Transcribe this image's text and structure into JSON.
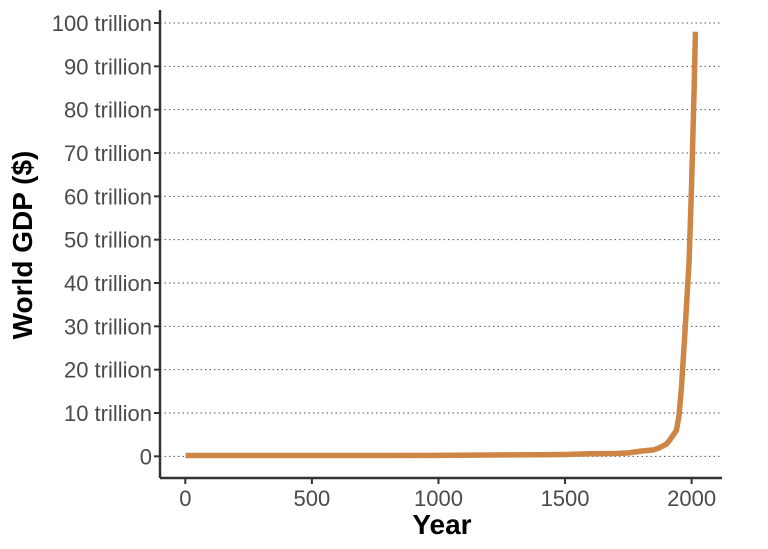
{
  "chart_data": {
    "type": "line",
    "title": "",
    "xlabel": "Year",
    "ylabel": "World GDP ($)",
    "xlim": [
      -100,
      2120
    ],
    "ylim": [
      -5,
      103
    ],
    "x_ticks": [
      0,
      500,
      1000,
      1500,
      2000
    ],
    "x_tick_labels": [
      "0",
      "500",
      "1000",
      "1500",
      "2000"
    ],
    "y_ticks": [
      0,
      10,
      20,
      30,
      40,
      50,
      60,
      70,
      80,
      90,
      100
    ],
    "y_tick_labels": [
      "0",
      "10 trillion",
      "20 trillion",
      "30 trillion",
      "40 trillion",
      "50 trillion",
      "60 trillion",
      "70 trillion",
      "80 trillion",
      "90 trillion",
      "100 trillion"
    ],
    "grid": "horizontal dotted",
    "line_color": "#CD8646",
    "series": [
      {
        "x": [
          1,
          500,
          1000,
          1200,
          1400,
          1500,
          1600,
          1700,
          1750,
          1800,
          1850,
          1870,
          1900,
          1913,
          1940,
          1950,
          1960,
          1973,
          1980,
          1990,
          2000,
          2010,
          2015
        ],
        "values": [
          0.18,
          0.2,
          0.21,
          0.3,
          0.36,
          0.43,
          0.6,
          0.65,
          0.8,
          1.2,
          1.5,
          1.9,
          2.8,
          3.7,
          6.0,
          9.3,
          16.0,
          28.0,
          35.0,
          45.0,
          63.0,
          85.0,
          98.0
        ]
      }
    ]
  }
}
